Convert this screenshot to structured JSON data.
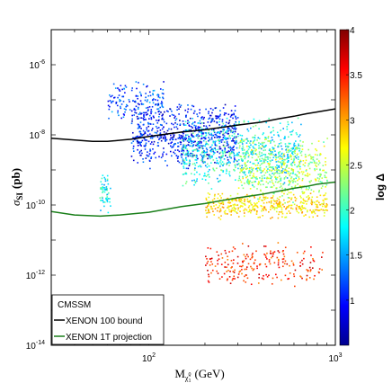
{
  "chart_data": {
    "type": "scatter",
    "xlabel": "M",
    "xlabel_sub": "χ̃",
    "xlabel_sub_sup": "0",
    "xlabel_sub_sub": "1",
    "xlabel_unit": "(GeV)",
    "ylabel": "σ",
    "ylabel_sub": "SI",
    "ylabel_unit": "(pb)",
    "x_scale": "log",
    "y_scale": "log",
    "xlim": [
      30,
      1000
    ],
    "ylim": [
      1e-14,
      1e-05
    ],
    "x_ticks": [
      {
        "base": "10",
        "exp": "2",
        "value": 100
      },
      {
        "base": "10",
        "exp": "3",
        "value": 1000
      }
    ],
    "y_ticks": [
      {
        "base": "10",
        "exp": "-6",
        "value": 1e-06
      },
      {
        "base": "10",
        "exp": "-8",
        "value": 1e-08
      },
      {
        "base": "10",
        "exp": "-10",
        "value": 1e-10
      },
      {
        "base": "10",
        "exp": "-12",
        "value": 1e-12
      },
      {
        "base": "10",
        "exp": "-14",
        "value": 1e-14
      }
    ],
    "colorbar": {
      "title": "log Δ",
      "range": [
        0.5,
        4
      ],
      "ticks": [
        "1",
        "1.5",
        "2",
        "2.5",
        "3",
        "3.5",
        "4"
      ],
      "colormap": [
        "#00008f",
        "#0000ff",
        "#0080ff",
        "#00ffff",
        "#80ff80",
        "#ffff00",
        "#ff8000",
        "#ff0000",
        "#800000"
      ]
    },
    "lines": [
      {
        "name": "XENON 100 bound",
        "color": "#000000",
        "x": [
          30,
          50,
          60,
          80,
          100,
          150,
          200,
          300,
          400,
          500,
          600,
          700,
          800,
          1000
        ],
        "y": [
          8e-09,
          6.5e-09,
          6.5e-09,
          7.5e-09,
          9e-09,
          1.2e-08,
          1.4e-08,
          1.9e-08,
          2.3e-08,
          2.9e-08,
          3.4e-08,
          4e-08,
          4.5e-08,
          5.5e-08
        ]
      },
      {
        "name": "XENON 1T projection",
        "color": "#1a7f1a",
        "x": [
          30,
          40,
          55,
          70,
          100,
          150,
          200,
          300,
          400,
          500,
          600,
          700,
          800,
          1000
        ],
        "y": [
          6.5e-11,
          5.2e-11,
          4.8e-11,
          5.2e-11,
          6.2e-11,
          9e-11,
          1.1e-10,
          1.6e-10,
          2e-10,
          2.5e-10,
          3e-10,
          3.4e-10,
          3.9e-10,
          4.5e-10
        ]
      }
    ],
    "point_clouds": [
      {
        "x_range": [
          54,
          62
        ],
        "log_y_range": [
          -10.3,
          -9.0
        ],
        "color_range": [
          1.4,
          2.2
        ],
        "count": 60
      },
      {
        "x_range": [
          60,
          120
        ],
        "log_y_range": [
          -7.6,
          -6.4
        ],
        "color_range": [
          0.8,
          1.6
        ],
        "count": 150
      },
      {
        "x_range": [
          80,
          300
        ],
        "log_y_range": [
          -9.0,
          -7.0
        ],
        "color_range": [
          0.6,
          1.4
        ],
        "count": 700
      },
      {
        "x_range": [
          150,
          650
        ],
        "log_y_range": [
          -9.6,
          -7.4
        ],
        "color_range": [
          1.4,
          2.3
        ],
        "count": 700
      },
      {
        "x_range": [
          300,
          900
        ],
        "log_y_range": [
          -10.0,
          -8.0
        ],
        "color_range": [
          2.0,
          2.8
        ],
        "count": 450
      },
      {
        "x_range": [
          200,
          900
        ],
        "log_y_range": [
          -10.4,
          -9.6
        ],
        "color_range": [
          2.5,
          3.1
        ],
        "count": 400
      },
      {
        "x_range": [
          200,
          850
        ],
        "log_y_range": [
          -12.4,
          -11.0
        ],
        "color_range": [
          3.1,
          3.8
        ],
        "count": 220
      }
    ],
    "legend": {
      "position": "bottom-left",
      "title": "CMSSM",
      "entries": [
        {
          "label": "XENON 100 bound",
          "color": "#000000"
        },
        {
          "label": "XENON 1T projection",
          "color": "#1a7f1a"
        }
      ]
    },
    "grid": false
  }
}
